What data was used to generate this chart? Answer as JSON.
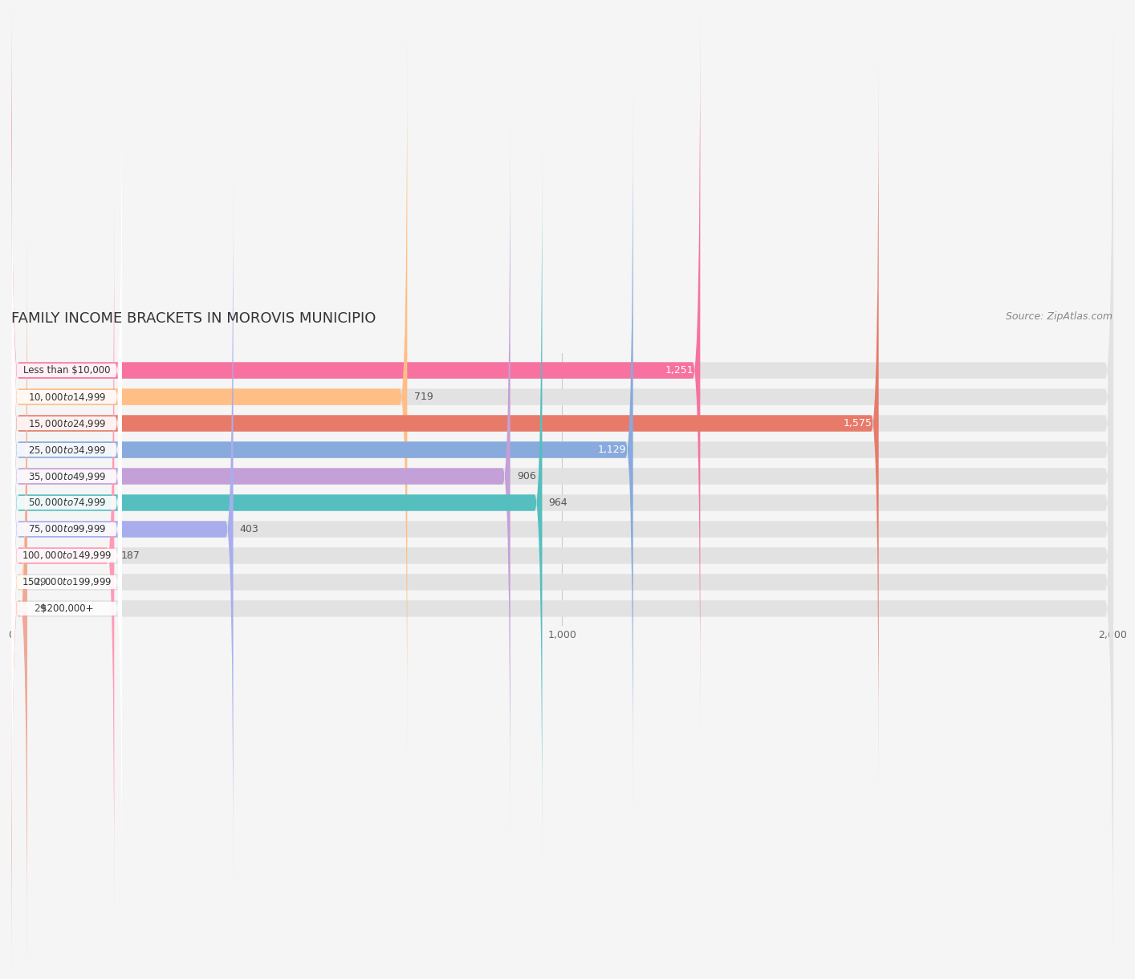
{
  "title": "FAMILY INCOME BRACKETS IN MOROVIS MUNICIPIO",
  "source": "Source: ZipAtlas.com",
  "categories": [
    "Less than $10,000",
    "$10,000 to $14,999",
    "$15,000 to $24,999",
    "$25,000 to $34,999",
    "$35,000 to $49,999",
    "$50,000 to $74,999",
    "$75,000 to $99,999",
    "$100,000 to $149,999",
    "$150,000 to $199,999",
    "$200,000+"
  ],
  "values": [
    1251,
    719,
    1575,
    1129,
    906,
    964,
    403,
    187,
    29,
    29
  ],
  "bar_colors": [
    "#F772A0",
    "#FFBE85",
    "#E87A6A",
    "#88AADD",
    "#C4A0D8",
    "#55BFBF",
    "#A8AEED",
    "#FF9BB5",
    "#FFCC99",
    "#F0A898"
  ],
  "background_color": "#f5f5f5",
  "bar_background_color": "#e2e2e2",
  "xlim": [
    0,
    2000
  ],
  "xticks": [
    0,
    1000,
    2000
  ],
  "title_fontsize": 13,
  "label_fontsize": 8.5,
  "value_fontsize": 9,
  "source_fontsize": 9
}
